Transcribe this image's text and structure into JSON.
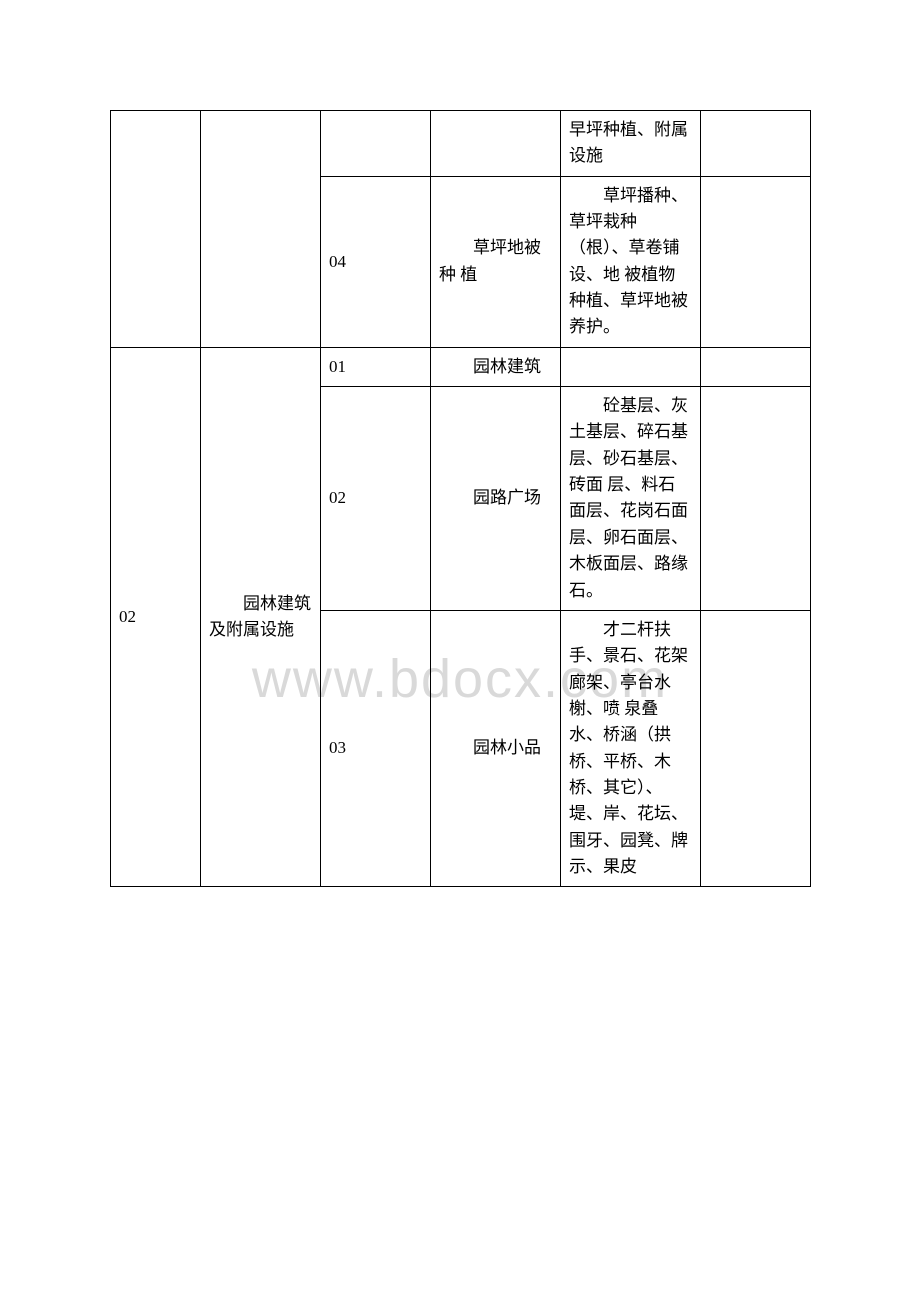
{
  "watermark": "www.bdocx.com",
  "table": {
    "rows": [
      {
        "col1": "",
        "col2": "",
        "col3": "",
        "col4": "",
        "col5": "早坪种植、附属设施",
        "col6": ""
      },
      {
        "col1": "",
        "col2": "",
        "col3": "04",
        "col4": "草坪地被种 植",
        "col5": "草坪播种、草坪栽种（根）、草卷铺设、地 被植物种植、草坪地被养护。",
        "col6": ""
      },
      {
        "col1": "02",
        "col2": "园林建筑及附属设施",
        "col3": "01",
        "col4": "园林建筑",
        "col5": "",
        "col6": ""
      },
      {
        "col3": "02",
        "col4": "园路广场",
        "col5": "砼基层、灰土基层、碎石基层、砂石基层、砖面 层、料石面层、花岗石面层、卵石面层、木板面层、路缘石。",
        "col6": ""
      },
      {
        "col3": "03",
        "col4": "园林小品",
        "col5": "才二杆扶手、景石、花架廊架、亭台水榭、喷 泉叠水、桥涵（拱桥、平桥、木桥、其它）、 堤、岸、花坛、围牙、园凳、牌示、果皮",
        "col6": ""
      }
    ]
  }
}
